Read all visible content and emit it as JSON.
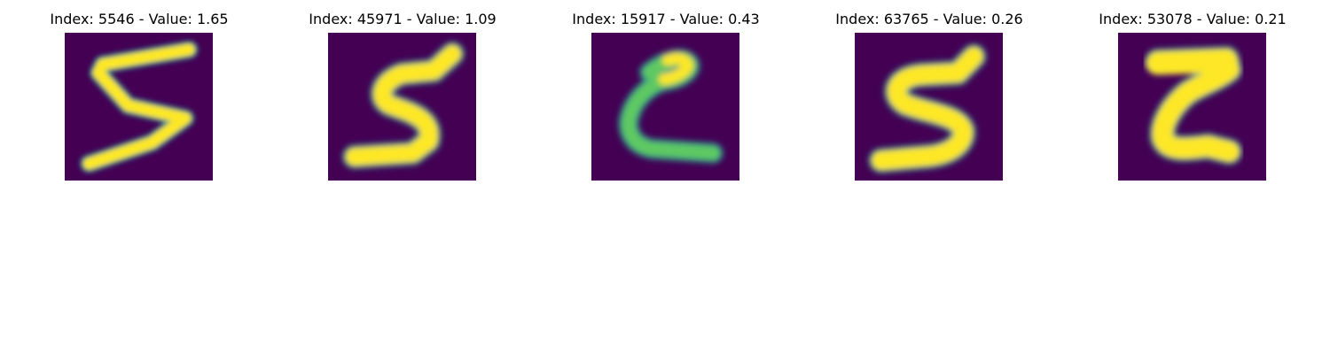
{
  "panels": [
    {
      "title": "Index: 5546 - Value: 1.65",
      "digit_shape": "five-slanted-thin",
      "label_digit": "5"
    },
    {
      "title": "Index: 45971 - Value: 1.09",
      "digit_shape": "five-bold",
      "label_digit": "5"
    },
    {
      "title": "Index: 15917 - Value: 0.43",
      "digit_shape": "two-curly",
      "label_digit": "2"
    },
    {
      "title": "Index: 63765 - Value: 0.26",
      "digit_shape": "five-bold-wide",
      "label_digit": "5"
    },
    {
      "title": "Index: 53078 - Value: 0.21",
      "digit_shape": "two-bold",
      "label_digit": "2"
    }
  ],
  "colors": {
    "background": "#440154",
    "stroke_core": "#fde725",
    "stroke_mid": "#5ec962",
    "stroke_edge": "#21918c"
  }
}
